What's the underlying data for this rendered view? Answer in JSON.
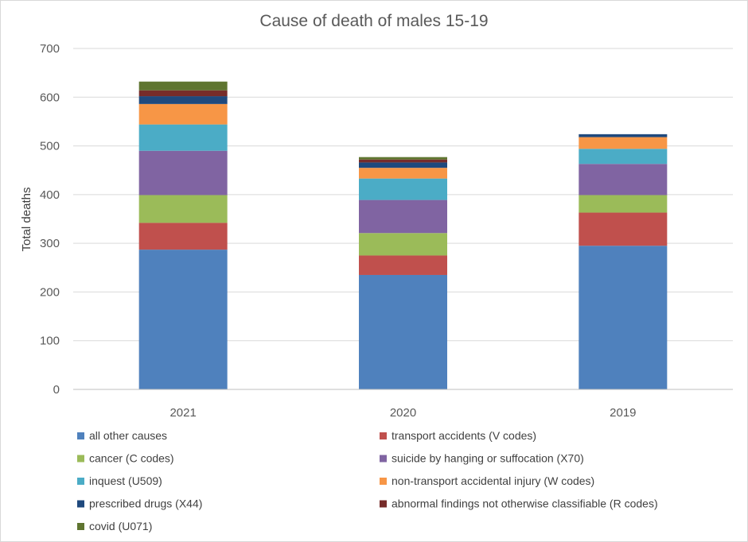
{
  "chart_data": {
    "type": "bar",
    "stacked": true,
    "title": "Cause of death of males 15-19",
    "ylabel": "Total deaths",
    "xlabel": "",
    "ylim": [
      0,
      700
    ],
    "yticks": [
      0,
      100,
      200,
      300,
      400,
      500,
      600,
      700
    ],
    "grid": true,
    "legend_position": "bottom",
    "categories": [
      "2021",
      "2020",
      "2019"
    ],
    "series": [
      {
        "name": "all other causes",
        "color": "#4f81bd",
        "values": [
          287,
          235,
          295
        ]
      },
      {
        "name": "transport accidents (V codes)",
        "color": "#c0504d",
        "values": [
          55,
          40,
          68
        ]
      },
      {
        "name": "cancer (C codes)",
        "color": "#9bbb59",
        "values": [
          57,
          46,
          36
        ]
      },
      {
        "name": "suicide by hanging or suffocation (X70)",
        "color": "#8064a2",
        "values": [
          91,
          68,
          64
        ]
      },
      {
        "name": "inquest (U509)",
        "color": "#4bacc6",
        "values": [
          54,
          44,
          31
        ]
      },
      {
        "name": "non-transport accidental injury (W codes)",
        "color": "#f79646",
        "values": [
          42,
          22,
          24
        ]
      },
      {
        "name": "prescribed drugs (X44)",
        "color": "#1f497d",
        "values": [
          16,
          11,
          6
        ]
      },
      {
        "name": "abnormal findings not otherwise classifiable (R codes)",
        "color": "#772c2a",
        "values": [
          12,
          6,
          0
        ]
      },
      {
        "name": "covid (U071)",
        "color": "#5f7530",
        "values": [
          18,
          5,
          0
        ]
      }
    ]
  }
}
